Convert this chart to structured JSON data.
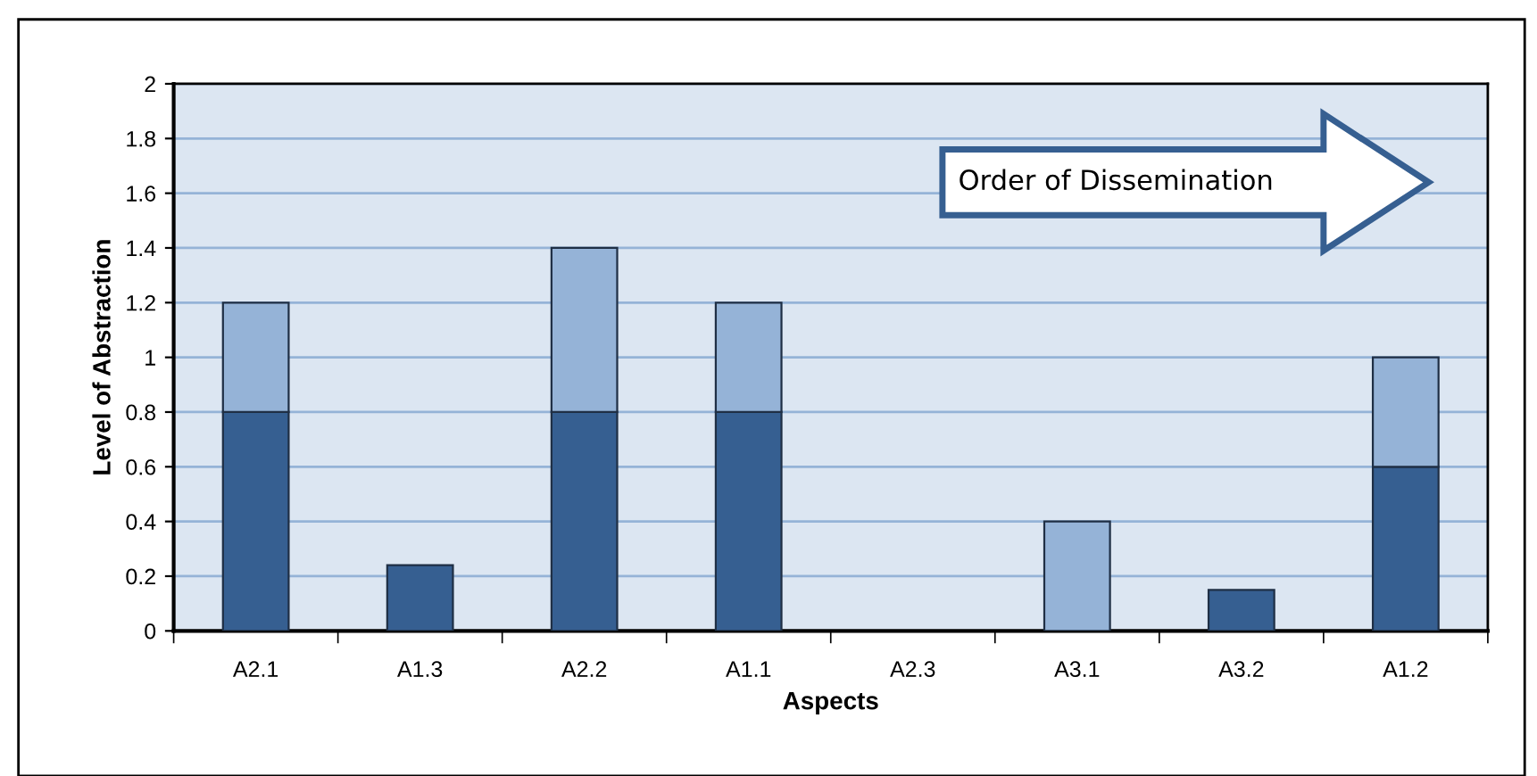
{
  "chart_data": {
    "type": "bar",
    "stacked": true,
    "xlabel": "Aspects",
    "ylabel": "Level of Abstraction",
    "categories": [
      "A2.1",
      "A1.3",
      "A2.2",
      "A1.1",
      "A2.3",
      "A3.1",
      "A3.2",
      "A1.2"
    ],
    "series": [
      {
        "color": "#365f91",
        "values": [
          0.8,
          0.24,
          0.8,
          0.8,
          null,
          null,
          0.15,
          0.6
        ]
      },
      {
        "color": "#95b3d7",
        "values": [
          0.4,
          null,
          0.6,
          0.4,
          null,
          0.4,
          null,
          0.4
        ]
      }
    ],
    "ylim": [
      0,
      2
    ],
    "yticks": [
      0,
      0.2,
      0.4,
      0.6,
      0.8,
      1,
      1.2,
      1.4,
      1.6,
      1.8,
      2
    ],
    "grid": "y",
    "annotations": [
      "Order of Dissemination"
    ]
  }
}
